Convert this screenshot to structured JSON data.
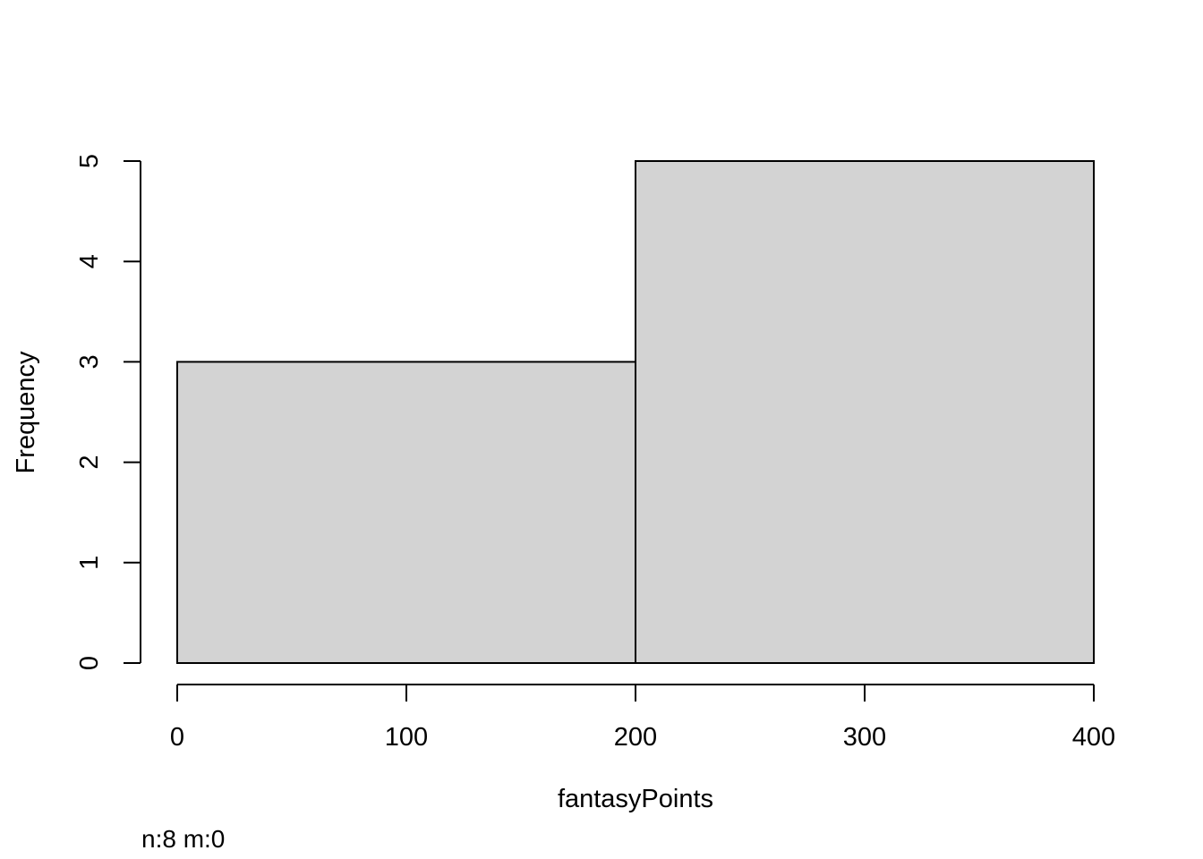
{
  "chart_data": {
    "type": "bar",
    "histogram": true,
    "bins": [
      {
        "start": 0,
        "end": 200,
        "count": 3
      },
      {
        "start": 200,
        "end": 400,
        "count": 5
      }
    ],
    "xlabel": "fantasyPoints",
    "ylabel": "Frequency",
    "xlim": [
      0,
      400
    ],
    "ylim": [
      0,
      5
    ],
    "x_ticks": [
      0,
      100,
      200,
      300,
      400
    ],
    "y_ticks": [
      0,
      1,
      2,
      3,
      4,
      5
    ],
    "x_tick_labels": [
      "0",
      "100",
      "200",
      "300",
      "400"
    ],
    "y_tick_labels": [
      "0",
      "1",
      "2",
      "3",
      "4",
      "5"
    ],
    "bar_color": "#d3d3d3",
    "edge_color": "#000000",
    "grid": false,
    "legend": "none",
    "note": "n:8 m:0"
  }
}
